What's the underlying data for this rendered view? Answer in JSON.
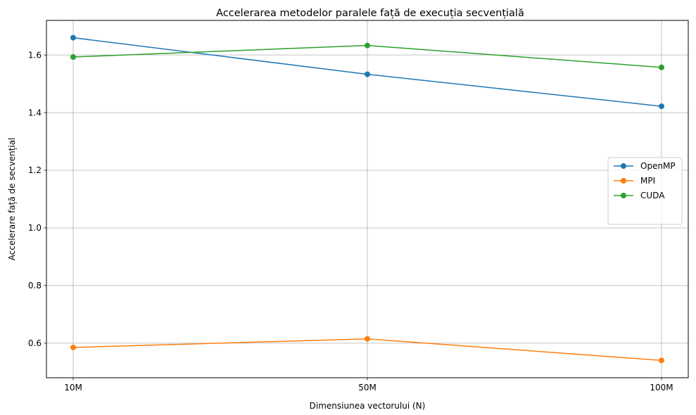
{
  "chart_data": {
    "type": "line",
    "title": "Accelerarea metodelor paralele față de execuția secvențială",
    "xlabel": "Dimensiunea vectorului (N)",
    "ylabel": "Accelerare față de secvențial",
    "categories": [
      "10M",
      "50M",
      "100M"
    ],
    "yticks": [
      0.6,
      0.8,
      1.0,
      1.2,
      1.4,
      1.6
    ],
    "ytick_labels": [
      "0.6",
      "0.8",
      "1.0",
      "1.2",
      "1.4",
      "1.6"
    ],
    "ylim": [
      0.48,
      1.72
    ],
    "grid": true,
    "legend_position": "center-right",
    "series": [
      {
        "name": "OpenMP",
        "color": "#1f77b4",
        "marker": "circle",
        "values": [
          1.66,
          1.533,
          1.422
        ]
      },
      {
        "name": "MPI",
        "color": "#ff7f0e",
        "marker": "circle",
        "values": [
          0.585,
          0.615,
          0.54
        ]
      },
      {
        "name": "CUDA",
        "color": "#2ca02c",
        "marker": "circle",
        "values": [
          1.593,
          1.633,
          1.557
        ]
      }
    ]
  }
}
